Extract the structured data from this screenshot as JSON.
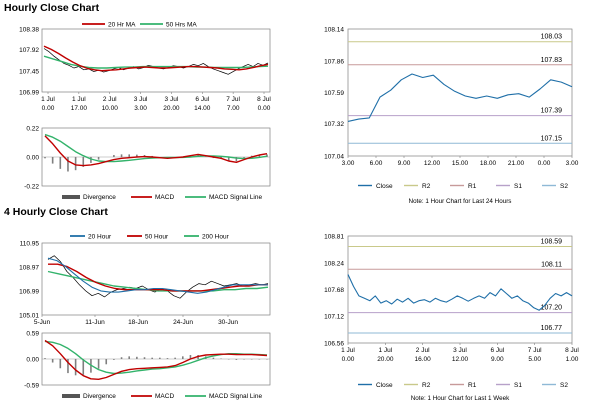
{
  "sections": [
    {
      "title": "Hourly Close Chart"
    },
    {
      "title": "4 Hourly Close Chart"
    }
  ],
  "chart_data": [
    {
      "id": "h_price",
      "type": "line",
      "title": "Hourly Close Chart",
      "ylim": [
        106.99,
        108.38
      ],
      "yticks": [
        "108.38",
        "107.92",
        "107.45",
        "106.99"
      ],
      "xticks": [
        "1 Jul\n0.00",
        "1 Jul\n17.00",
        "2 Jul\n10.00",
        "3 Jul\n3.00",
        "3 Jul\n20.00",
        "6 Jul\n14.00",
        "7 Jul\n7.00",
        "8 Jul\n0.00"
      ],
      "legend": [
        "20 Hr MA",
        "50 Hrs MA"
      ],
      "colors": {
        "ma20": "#c00000",
        "ma50": "#33b36b",
        "price": "#000000"
      },
      "close": [
        107.95,
        107.88,
        107.78,
        107.7,
        107.62,
        107.58,
        107.52,
        107.55,
        107.48,
        107.5,
        107.44,
        107.47,
        107.43,
        107.46,
        107.5,
        107.53,
        107.48,
        107.52,
        107.55,
        107.5,
        107.53,
        107.58,
        107.55,
        107.52,
        107.5,
        107.53,
        107.57,
        107.55,
        107.52,
        107.55,
        107.6,
        107.57,
        107.62,
        107.55,
        107.5,
        107.46,
        107.42,
        107.38,
        107.44,
        107.5,
        107.55,
        107.6,
        107.55,
        107.62,
        107.58,
        107.63
      ],
      "ma20": [
        108.0,
        107.93,
        107.84,
        107.74,
        107.65,
        107.57,
        107.51,
        107.48,
        107.46,
        107.47,
        107.48,
        107.5,
        107.52,
        107.53,
        107.54,
        107.53,
        107.52,
        107.52,
        107.53,
        107.54,
        107.55,
        107.55,
        107.54,
        107.53,
        107.52,
        107.5,
        107.49,
        107.48,
        107.5,
        107.53,
        107.57,
        107.6
      ],
      "ma50": [
        107.78,
        107.72,
        107.66,
        107.6,
        107.56,
        107.53,
        107.52,
        107.52,
        107.53,
        107.54,
        107.54,
        107.55,
        107.55,
        107.55,
        107.55,
        107.55,
        107.55,
        107.54,
        107.54,
        107.53,
        107.53,
        107.53,
        107.53,
        107.54,
        107.55,
        107.56
      ]
    },
    {
      "id": "h_macd",
      "type": "line",
      "ylim": [
        -0.22,
        0.22
      ],
      "yticks": [
        "0.22",
        "0.00",
        "-0.22"
      ],
      "legend": [
        "Divergence",
        "MACD",
        "MACD Signal Line"
      ],
      "colors": {
        "divergence": "#7f7f7f",
        "macd": "#c00000",
        "signal": "#33b36b"
      },
      "macd": [
        0.16,
        0.1,
        0.03,
        -0.03,
        -0.06,
        -0.065,
        -0.06,
        -0.05,
        -0.035,
        -0.02,
        -0.01,
        -0.005,
        0.0,
        0.003,
        0.0,
        -0.005,
        -0.01,
        -0.005,
        0.0,
        0.01,
        0.02,
        0.01,
        0.0,
        -0.01,
        -0.03,
        -0.04,
        -0.02,
        0.0,
        0.015,
        0.025
      ],
      "signal": [
        0.17,
        0.15,
        0.12,
        0.08,
        0.04,
        0.01,
        -0.015,
        -0.03,
        -0.035,
        -0.035,
        -0.03,
        -0.025,
        -0.018,
        -0.012,
        -0.008,
        -0.005,
        -0.004,
        -0.004,
        -0.003,
        0.0,
        0.005,
        0.008,
        0.008,
        0.005,
        0.0,
        -0.008,
        -0.012,
        -0.01,
        -0.003,
        0.006
      ],
      "divergence": [
        -0.01,
        -0.05,
        -0.09,
        -0.11,
        -0.1,
        -0.075,
        -0.045,
        -0.02,
        0.0,
        0.015,
        0.02,
        0.02,
        0.018,
        0.015,
        0.008,
        0.0,
        -0.006,
        -0.001,
        0.003,
        0.01,
        0.015,
        0.002,
        -0.008,
        -0.015,
        -0.03,
        -0.032,
        -0.008,
        0.01,
        0.018,
        0.019
      ]
    },
    {
      "id": "h_24",
      "type": "line",
      "ylim": [
        107.04,
        108.14
      ],
      "yticks": [
        "108.14",
        "107.86",
        "107.59",
        "107.32",
        "107.04"
      ],
      "xticks": [
        "3.00",
        "6.00",
        "9.00",
        "12.00",
        "15.00",
        "18.00",
        "21.00",
        "0.00",
        "3.00"
      ],
      "levels": [
        {
          "name": "R2",
          "value": 108.03,
          "label": "108.03",
          "color": "#c9c98a"
        },
        {
          "name": "R1",
          "value": 107.83,
          "label": "107.83",
          "color": "#c79a9a"
        },
        {
          "name": "S1",
          "value": 107.39,
          "label": "107.39",
          "color": "#b7a1c9"
        },
        {
          "name": "S2",
          "value": 107.15,
          "label": "107.15",
          "color": "#8fb9d6"
        }
      ],
      "close": [
        107.34,
        107.36,
        107.37,
        107.55,
        107.61,
        107.7,
        107.75,
        107.72,
        107.74,
        107.66,
        107.6,
        107.56,
        107.54,
        107.56,
        107.54,
        107.57,
        107.58,
        107.55,
        107.62,
        107.7,
        107.68,
        107.64
      ],
      "legend": [
        "Close",
        "R2",
        "R1",
        "S1",
        "S2"
      ],
      "note": "Note: 1 Hour Chart for Last 24 Hours",
      "colors": {
        "close": "#1f6fa8"
      }
    },
    {
      "id": "h4_price",
      "type": "line",
      "title": "4 Hourly Close Chart",
      "ylim": [
        105.01,
        110.95
      ],
      "yticks": [
        "110.95",
        "108.97",
        "106.99",
        "105.01"
      ],
      "xticks": [
        "5-Jun",
        "11-Jun",
        "18-Jun",
        "24-Jun",
        "30-Jun"
      ],
      "legend": [
        "20 Hour",
        "50 Hour",
        "200 Hour"
      ],
      "colors": {
        "ma20": "#1f6fa8",
        "ma50": "#c00000",
        "ma200": "#33b36b",
        "price": "#000000"
      },
      "close": [
        109.6,
        109.9,
        109.4,
        108.6,
        108.1,
        107.5,
        107.0,
        106.6,
        106.8,
        106.5,
        106.9,
        107.1,
        107.2,
        107.3,
        107.2,
        107.4,
        107.1,
        106.9,
        107.2,
        107.0,
        106.6,
        106.4,
        106.9,
        107.3,
        107.6,
        107.5,
        107.8,
        107.6,
        107.4,
        107.5,
        107.6,
        107.4,
        107.5,
        107.6,
        107.5,
        107.6
      ],
      "ma20": [
        109.7,
        109.5,
        109.0,
        108.4,
        107.8,
        107.3,
        107.0,
        106.9,
        106.9,
        107.0,
        107.1,
        107.1,
        107.2,
        107.2,
        107.1,
        107.0,
        106.9,
        106.8,
        106.9,
        107.1,
        107.3,
        107.5,
        107.5,
        107.5,
        107.5,
        107.5
      ],
      "ma50": [
        109.2,
        109.2,
        109.0,
        108.6,
        108.1,
        107.7,
        107.4,
        107.2,
        107.1,
        107.1,
        107.1,
        107.1,
        107.1,
        107.0,
        107.0,
        107.0,
        107.0,
        107.1,
        107.2,
        107.3,
        107.4,
        107.4,
        107.5,
        107.5
      ],
      "ma200": [
        108.6,
        108.4,
        108.2,
        108.0,
        107.8,
        107.6,
        107.4,
        107.3,
        107.2,
        107.1,
        107.0,
        107.0,
        107.0,
        107.0,
        107.0,
        107.0,
        107.1,
        107.1,
        107.2,
        107.2,
        107.3
      ]
    },
    {
      "id": "h4_macd",
      "type": "line",
      "ylim": [
        -0.59,
        0.59
      ],
      "yticks": [
        "0.59",
        "0.00",
        "-0.59"
      ],
      "legend": [
        "Divergence",
        "MACD",
        "MACD Signal Line"
      ],
      "colors": {
        "divergence": "#7f7f7f",
        "macd": "#c00000",
        "signal": "#33b36b"
      },
      "macd": [
        0.42,
        0.3,
        0.12,
        -0.08,
        -0.25,
        -0.38,
        -0.45,
        -0.46,
        -0.42,
        -0.35,
        -0.28,
        -0.24,
        -0.22,
        -0.21,
        -0.2,
        -0.19,
        -0.18,
        -0.15,
        -0.08,
        0.0,
        0.06,
        0.09,
        0.1,
        0.11,
        0.11,
        0.1,
        0.1,
        0.1,
        0.09,
        0.08
      ],
      "signal": [
        0.4,
        0.38,
        0.33,
        0.24,
        0.12,
        -0.02,
        -0.14,
        -0.24,
        -0.3,
        -0.33,
        -0.32,
        -0.3,
        -0.27,
        -0.25,
        -0.23,
        -0.22,
        -0.2,
        -0.18,
        -0.14,
        -0.09,
        -0.03,
        0.03,
        0.07,
        0.1,
        0.12,
        0.12,
        0.11,
        0.11,
        0.1,
        0.09
      ],
      "divergence": [
        0.02,
        -0.08,
        -0.21,
        -0.32,
        -0.37,
        -0.36,
        -0.31,
        -0.22,
        -0.12,
        -0.02,
        0.04,
        0.06,
        0.05,
        0.04,
        0.03,
        0.03,
        0.02,
        0.03,
        0.06,
        0.09,
        0.09,
        0.06,
        0.03,
        0.01,
        -0.01,
        -0.02,
        -0.01,
        -0.01,
        -0.01,
        -0.01
      ]
    },
    {
      "id": "h4_week",
      "type": "line",
      "ylim": [
        106.56,
        108.81
      ],
      "yticks": [
        "108.81",
        "108.24",
        "107.68",
        "107.12",
        "106.56"
      ],
      "xticks": [
        "1 Jul\n0.00",
        "1 Jul\n20.00",
        "2 Jul\n16.00",
        "3 Jul\n12.00",
        "6 Jul\n9.00",
        "7 Jul\n5.00",
        "8 Jul\n1.00"
      ],
      "levels": [
        {
          "name": "R2",
          "value": 108.59,
          "label": "108.59",
          "color": "#c9c98a"
        },
        {
          "name": "R1",
          "value": 108.11,
          "label": "108.11",
          "color": "#c79a9a"
        },
        {
          "name": "S1",
          "value": 107.2,
          "label": "107.20",
          "color": "#b7a1c9"
        },
        {
          "name": "S2",
          "value": 106.77,
          "label": "106.77",
          "color": "#8fb9d6"
        }
      ],
      "close": [
        108.0,
        107.75,
        107.55,
        107.5,
        107.45,
        107.55,
        107.4,
        107.45,
        107.38,
        107.48,
        107.42,
        107.5,
        107.4,
        107.45,
        107.47,
        107.42,
        107.5,
        107.45,
        107.42,
        107.48,
        107.55,
        107.5,
        107.44,
        107.5,
        107.55,
        107.5,
        107.62,
        107.55,
        107.7,
        107.6,
        107.5,
        107.55,
        107.45,
        107.4,
        107.3,
        107.25,
        107.35,
        107.5,
        107.6,
        107.55,
        107.62,
        107.55
      ],
      "legend": [
        "Close",
        "R2",
        "R1",
        "S1",
        "S2"
      ],
      "note": "Note: 1 Hour Chart for Last 1 Week",
      "colors": {
        "close": "#1f6fa8"
      }
    }
  ]
}
